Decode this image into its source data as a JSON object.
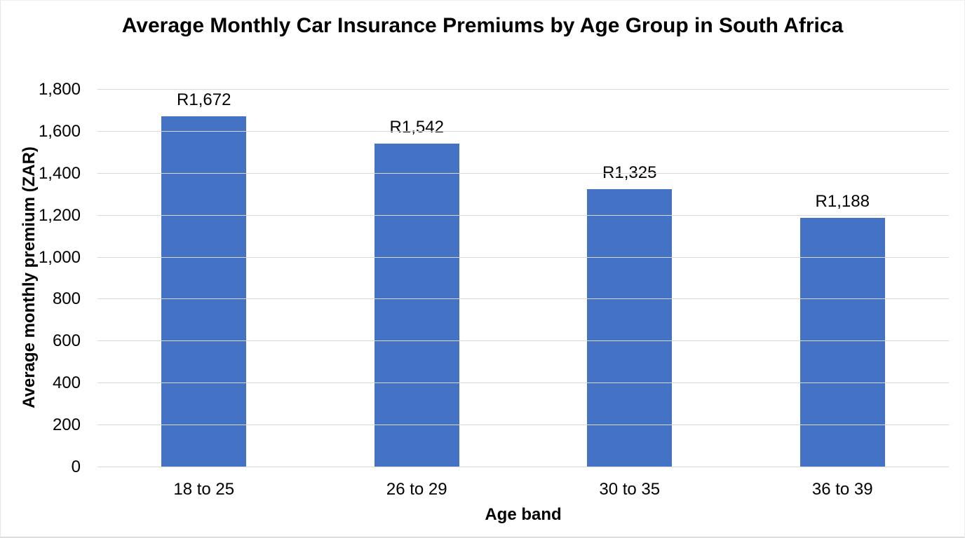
{
  "chart_data": {
    "type": "bar",
    "title": "Average Monthly Car Insurance Premiums by Age Group in South Africa",
    "xlabel": "Age band",
    "ylabel": "Average monthly premium (ZAR)",
    "categories": [
      "18 to 25",
      "26 to 29",
      "30 to 35",
      "36 to 39"
    ],
    "values": [
      1672,
      1542,
      1325,
      1188
    ],
    "data_labels": [
      "R1,672",
      "R1,542",
      "R1,325",
      "R1,188"
    ],
    "ylim": [
      0,
      1800
    ],
    "ytick_step": 200,
    "ytick_labels": [
      "0",
      "200",
      "400",
      "600",
      "800",
      "1,000",
      "1,200",
      "1,400",
      "1,600",
      "1,800"
    ],
    "grid": true,
    "legend": false,
    "bar_color": "#4472C4",
    "gridline_color": "#d8d8d8",
    "text_color": "#000000",
    "background_color": "#ffffff"
  }
}
